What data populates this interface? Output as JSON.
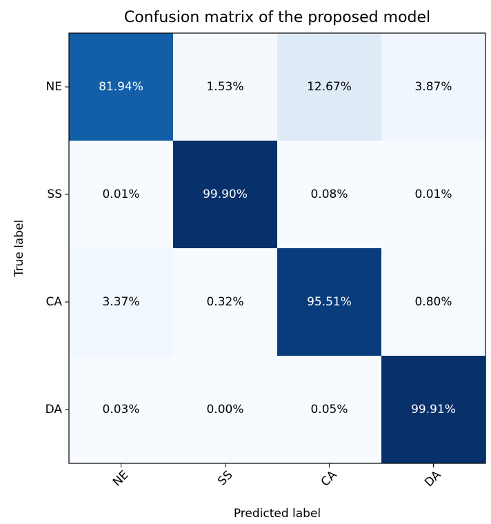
{
  "chart_data": {
    "type": "heatmap",
    "title": "Confusion matrix of the proposed model",
    "x_label": "Predicted label",
    "y_label": "True label",
    "x_categories": [
      "NE",
      "SS",
      "CA",
      "DA"
    ],
    "y_categories": [
      "NE",
      "SS",
      "CA",
      "DA"
    ],
    "values": [
      [
        81.94,
        1.53,
        12.67,
        3.87
      ],
      [
        0.01,
        99.9,
        0.08,
        0.01
      ],
      [
        3.37,
        0.32,
        95.51,
        0.8
      ],
      [
        0.03,
        0.0,
        0.05,
        99.91
      ]
    ],
    "value_labels": [
      [
        "81.94%",
        "1.53%",
        "12.67%",
        "3.87%"
      ],
      [
        "0.01%",
        "99.90%",
        "0.08%",
        "0.01%"
      ],
      [
        "3.37%",
        "0.32%",
        "95.51%",
        "0.80%"
      ],
      [
        "0.03%",
        "0.00%",
        "0.05%",
        "99.91%"
      ]
    ],
    "colormap": "Blues"
  }
}
